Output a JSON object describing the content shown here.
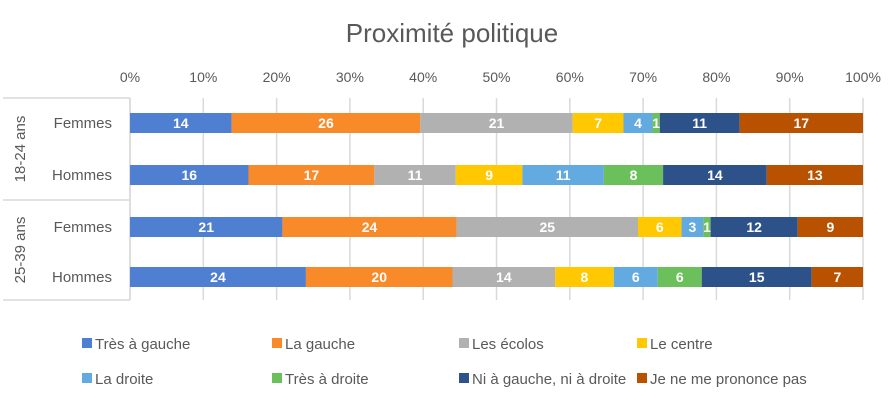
{
  "chart_data": {
    "type": "bar",
    "orientation": "horizontal",
    "stacked": "percent",
    "title": "Proximité politique",
    "xlabel": "",
    "ylabel": "",
    "xlim": [
      0,
      100
    ],
    "x_ticks": [
      "0%",
      "10%",
      "20%",
      "30%",
      "40%",
      "50%",
      "60%",
      "70%",
      "80%",
      "90%",
      "100%"
    ],
    "grid": true,
    "legend_position": "bottom",
    "groups": [
      {
        "label": "18-24 ans",
        "categories": [
          "Femmes",
          "Hommes"
        ]
      },
      {
        "label": "25-39 ans",
        "categories": [
          "Femmes",
          "Hommes"
        ]
      }
    ],
    "categories": [
      "18-24 ans Femmes",
      "18-24 ans Hommes",
      "25-39 ans Femmes",
      "25-39 ans Hommes"
    ],
    "series": [
      {
        "name": "Très à gauche",
        "color": "#4E7FD0",
        "values": [
          14,
          16,
          21,
          24
        ]
      },
      {
        "name": "La gauche",
        "color": "#F98A2A",
        "values": [
          26,
          17,
          24,
          20
        ]
      },
      {
        "name": "Les écolos",
        "color": "#B1B1B1",
        "values": [
          21,
          11,
          25,
          14
        ]
      },
      {
        "name": "Le centre",
        "color": "#FFC800",
        "values": [
          7,
          9,
          6,
          8
        ]
      },
      {
        "name": "La droite",
        "color": "#62AADF",
        "values": [
          4,
          11,
          3,
          6
        ]
      },
      {
        "name": "Très à droite",
        "color": "#6CC05B",
        "values": [
          1,
          8,
          1,
          6
        ]
      },
      {
        "name": "Ni à gauche, ni à droite",
        "color": "#2D528A",
        "values": [
          11,
          14,
          12,
          15
        ]
      },
      {
        "name": "Je ne me prononce pas",
        "color": "#B85200",
        "values": [
          17,
          13,
          9,
          7
        ]
      }
    ]
  }
}
